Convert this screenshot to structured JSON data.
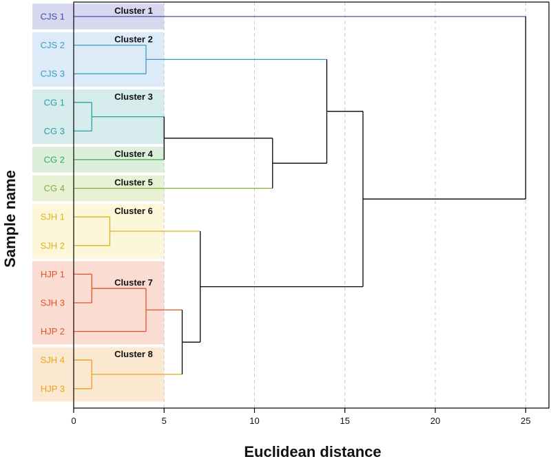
{
  "chart_data": {
    "type": "dendrogram",
    "xlabel": "Euclidean distance",
    "ylabel": "Sample name",
    "xlim": [
      0,
      26.5
    ],
    "xticks": [
      0,
      5,
      10,
      15,
      20,
      25
    ],
    "grid": "vertical dashed",
    "samples": [
      "CJS 1",
      "CJS 2",
      "CJS 3",
      "CG 1",
      "CG 3",
      "CG 2",
      "CG 4",
      "SJH 1",
      "SJH 2",
      "HJP 1",
      "SJH 3",
      "HJP 2",
      "SJH 4",
      "HJP 3"
    ],
    "sample_colors": [
      "#3f4fa6",
      "#3a9bc9",
      "#3a9bc9",
      "#2aa0a6",
      "#2aa0a6",
      "#3aa55a",
      "#7fb03a",
      "#d9b21b",
      "#d9b21b",
      "#e0522a",
      "#e0522a",
      "#e0522a",
      "#e8a21a",
      "#e8a21a"
    ],
    "clusters": [
      {
        "name": "Cluster 1",
        "members": [
          "CJS 1"
        ],
        "bg": "#d7d8ef"
      },
      {
        "name": "Cluster 2",
        "members": [
          "CJS 2",
          "CJS 3"
        ],
        "bg": "#dcebf7"
      },
      {
        "name": "Cluster 3",
        "members": [
          "CG 1",
          "CG 3"
        ],
        "bg": "#d6ebec"
      },
      {
        "name": "Cluster 4",
        "members": [
          "CG 2"
        ],
        "bg": "#dcefdb"
      },
      {
        "name": "Cluster 5",
        "members": [
          "CG 4"
        ],
        "bg": "#e8f1d3"
      },
      {
        "name": "Cluster 6",
        "members": [
          "SJH 1",
          "SJH 2"
        ],
        "bg": "#fcf7d8"
      },
      {
        "name": "Cluster 7",
        "members": [
          "HJP 1",
          "SJH 3",
          "HJP 2"
        ],
        "bg": "#fbdcd3"
      },
      {
        "name": "Cluster 8",
        "members": [
          "SJH 4",
          "HJP 3"
        ],
        "bg": "#fbe8d0"
      }
    ],
    "merges": [
      {
        "a": 1,
        "b": 2,
        "height": 4,
        "color": "#3a9bc9"
      },
      {
        "a": 3,
        "b": 4,
        "height": 1,
        "color": "#2aa0a6"
      },
      {
        "a": 15,
        "b": 5,
        "height": 5,
        "color": "#000000"
      },
      {
        "a": 16,
        "b": 6,
        "height": 11,
        "color": "#000000"
      },
      {
        "a": 14,
        "b": 17,
        "height": 14,
        "color": "#000000"
      },
      {
        "a": 7,
        "b": 8,
        "height": 2,
        "color": "#d9b21b"
      },
      {
        "a": 9,
        "b": 10,
        "height": 1,
        "color": "#e0522a"
      },
      {
        "a": 20,
        "b": 11,
        "height": 4,
        "color": "#e0522a"
      },
      {
        "a": 12,
        "b": 13,
        "height": 1,
        "color": "#e8a21a"
      },
      {
        "a": 21,
        "b": 22,
        "height": 6,
        "color": "#000000"
      },
      {
        "a": 19,
        "b": 23,
        "height": 7,
        "color": "#000000"
      },
      {
        "a": 18,
        "b": 24,
        "height": 16,
        "color": "#000000"
      },
      {
        "a": 0,
        "b": 25,
        "height": 25,
        "color": "#000000"
      }
    ],
    "cluster_label_nodes": [
      0,
      14,
      15,
      5,
      6,
      19,
      21,
      22
    ],
    "single_line_color": "#3f4fa6",
    "single_line_color_cluster_index": 0
  }
}
